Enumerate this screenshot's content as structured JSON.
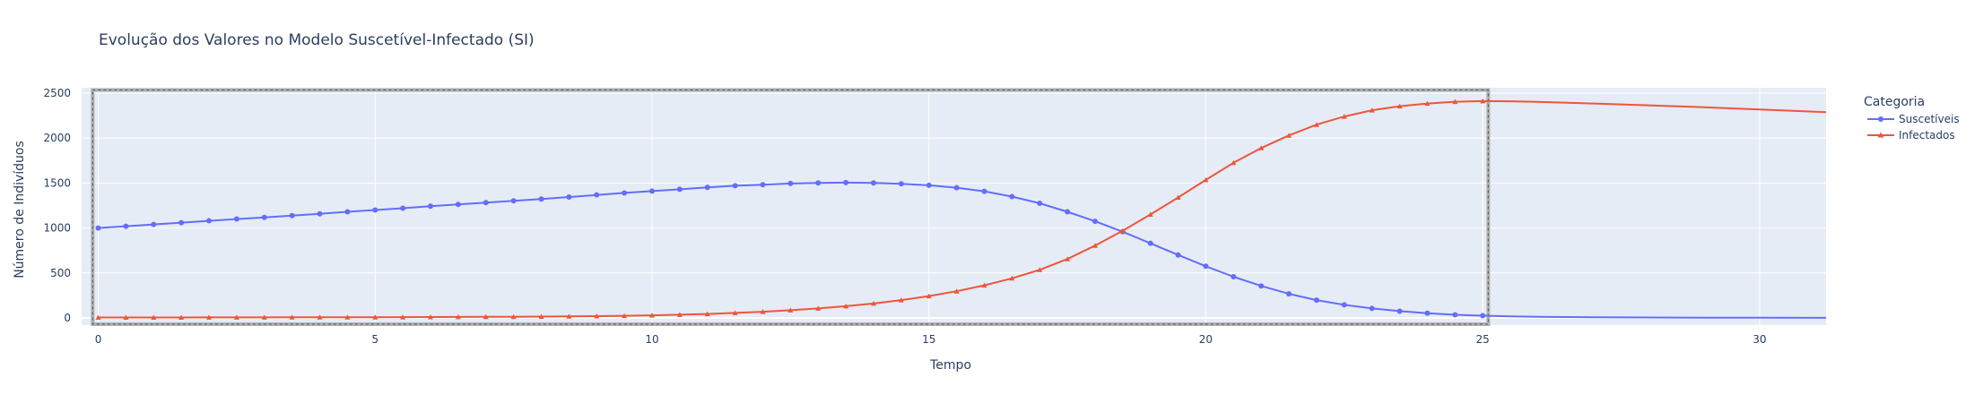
{
  "chart_data": {
    "type": "line",
    "title": "Evolução dos Valores no Modelo Suscetível-Infectado (SI)",
    "xlabel": "Tempo",
    "ylabel": "Número de Indivíduos",
    "xlim": [
      -0.3,
      31.2
    ],
    "ylim": [
      -80,
      2560
    ],
    "x_ticks": [
      0,
      5,
      10,
      15,
      20,
      25,
      30
    ],
    "y_ticks": [
      0,
      500,
      1000,
      1500,
      2000,
      2500
    ],
    "grid": true,
    "legend": {
      "title": "Categoria",
      "placement": "top-right"
    },
    "colors": {
      "plot_background": "#e5ecf6",
      "grid": "#ffffff"
    },
    "x": [
      0,
      0.5,
      1,
      1.5,
      2,
      2.5,
      3,
      3.5,
      4,
      4.5,
      5,
      5.5,
      6,
      6.5,
      7,
      7.5,
      8,
      8.5,
      9,
      9.5,
      10,
      10.5,
      11,
      11.5,
      12,
      12.5,
      13,
      13.5,
      14,
      14.5,
      15,
      15.5,
      16,
      16.5,
      17,
      17.5,
      18,
      18.5,
      19,
      19.5,
      20,
      20.5,
      21,
      21.5,
      22,
      22.5,
      23,
      23.5,
      24,
      24.5,
      25
    ],
    "series": [
      {
        "name": "Suscetíveis",
        "color": "#636efa",
        "marker": "circle",
        "values": [
          1000,
          1020,
          1040,
          1060,
          1080,
          1100,
          1118,
          1138,
          1158,
          1180,
          1200,
          1220,
          1242,
          1262,
          1282,
          1302,
          1322,
          1345,
          1368,
          1390,
          1410,
          1430,
          1452,
          1470,
          1482,
          1495,
          1502,
          1505,
          1502,
          1492,
          1475,
          1448,
          1408,
          1350,
          1275,
          1180,
          1075,
          958,
          830,
          700,
          575,
          458,
          355,
          268,
          198,
          145,
          105,
          75,
          52,
          35,
          25
        ],
        "tail": {
          "x": [
            25.5,
            26,
            27,
            28,
            29,
            30,
            31.2
          ],
          "values": [
            18,
            13,
            8,
            5,
            3,
            2,
            1
          ]
        }
      },
      {
        "name": "Infectados",
        "color": "#ef553b",
        "marker": "triangle",
        "values": [
          5,
          5,
          5,
          5,
          6,
          6,
          6,
          7,
          7,
          8,
          8,
          9,
          10,
          11,
          12,
          13,
          15,
          17,
          20,
          24,
          29,
          36,
          44,
          55,
          68,
          85,
          105,
          130,
          160,
          198,
          243,
          297,
          362,
          440,
          535,
          655,
          805,
          970,
          1150,
          1340,
          1535,
          1725,
          1890,
          2030,
          2150,
          2240,
          2310,
          2355,
          2385,
          2405,
          2412
        ],
        "tail": {
          "x": [
            25.5,
            26,
            27,
            28,
            29,
            30,
            31.2
          ],
          "values": [
            2410,
            2403,
            2385,
            2365,
            2343,
            2318,
            2288
          ]
        }
      }
    ],
    "selection_box": {
      "x": [
        -0.1,
        25.1
      ],
      "y": [
        -70,
        2535
      ]
    }
  }
}
